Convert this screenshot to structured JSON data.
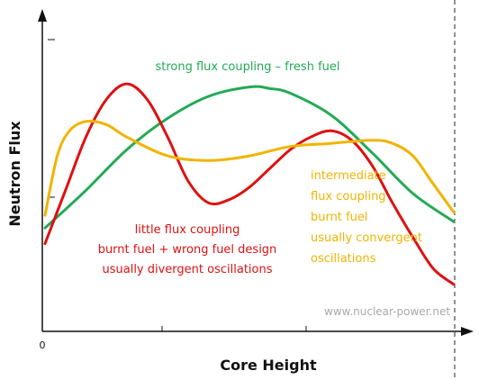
{
  "chart_data": {
    "type": "line",
    "xlabel": "Core Height",
    "ylabel": "Neutron Flux",
    "x_tick_labels": [
      "0"
    ],
    "grid": false,
    "xlim": [
      0,
      1
    ],
    "ylim": [
      0,
      1
    ],
    "series": [
      {
        "name": "strong flux coupling – fresh fuel",
        "color": "#22aa55",
        "x": [
          0.0,
          0.1,
          0.2,
          0.3,
          0.4,
          0.5,
          0.55,
          0.6,
          0.7,
          0.8,
          0.9,
          1.0
        ],
        "y": [
          0.33,
          0.45,
          0.58,
          0.68,
          0.75,
          0.78,
          0.775,
          0.76,
          0.69,
          0.57,
          0.44,
          0.35
        ]
      },
      {
        "name": "little flux coupling burnt fuel + wrong fuel design usually divergent oscillations",
        "color": "#dd1111",
        "x": [
          0.0,
          0.05,
          0.1,
          0.15,
          0.2,
          0.25,
          0.3,
          0.35,
          0.4,
          0.45,
          0.5,
          0.55,
          0.6,
          0.65,
          0.7,
          0.75,
          0.8,
          0.85,
          0.9,
          0.95,
          1.0
        ],
        "y": [
          0.28,
          0.45,
          0.62,
          0.74,
          0.79,
          0.74,
          0.62,
          0.48,
          0.41,
          0.42,
          0.46,
          0.52,
          0.58,
          0.62,
          0.64,
          0.61,
          0.53,
          0.41,
          0.3,
          0.2,
          0.15
        ]
      },
      {
        "name": "intermediate flux coupling burnt fuel usually convergent oscillations",
        "color": "#f0b400",
        "x": [
          0.0,
          0.03,
          0.06,
          0.1,
          0.15,
          0.2,
          0.3,
          0.4,
          0.5,
          0.6,
          0.7,
          0.8,
          0.85,
          0.9,
          0.95,
          1.0
        ],
        "y": [
          0.37,
          0.56,
          0.64,
          0.67,
          0.66,
          0.62,
          0.56,
          0.545,
          0.56,
          0.59,
          0.6,
          0.61,
          0.6,
          0.56,
          0.47,
          0.38
        ]
      }
    ],
    "annotations": [
      {
        "lines": [
          "strong flux coupling – fresh fuel"
        ],
        "color": "#22aa55"
      },
      {
        "lines": [
          "little flux coupling",
          "burnt fuel + wrong fuel design",
          "usually divergent oscillations"
        ],
        "color": "#dd1111"
      },
      {
        "lines": [
          "intermediate",
          "flux coupling",
          "burnt fuel",
          "usually convergent",
          "oscillations"
        ],
        "color": "#f0b400"
      }
    ],
    "watermark": "www.nuclear-power.net"
  }
}
